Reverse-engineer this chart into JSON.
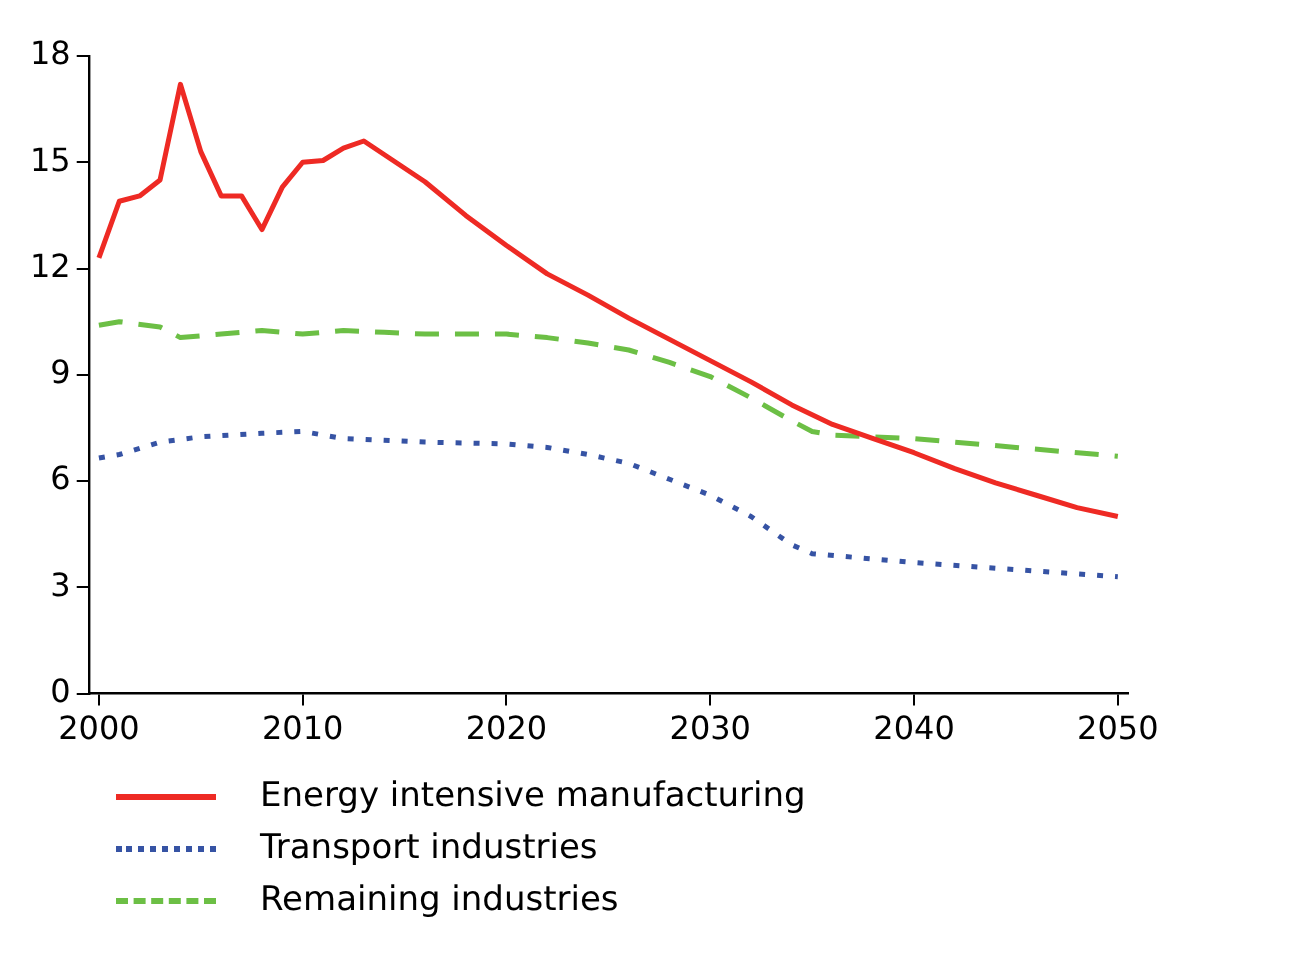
{
  "chart_data": {
    "type": "line",
    "xlim": [
      1999.5,
      2050.5
    ],
    "xticks": [
      2000,
      2010,
      2020,
      2030,
      2040,
      2050
    ],
    "ylim": [
      0,
      18
    ],
    "yticks": [
      0,
      3,
      6,
      9,
      12,
      15,
      18
    ],
    "grid": false,
    "legend": "bottom",
    "marker": "none",
    "series": [
      {
        "name": "Energy intensive manufacturing",
        "color": "#ee2a24",
        "line_style": "solid",
        "x": [
          2000,
          2001,
          2002,
          2003,
          2004,
          2005,
          2006,
          2007,
          2008,
          2009,
          2010,
          2011,
          2012,
          2013,
          2016,
          2018,
          2020,
          2022,
          2024,
          2026,
          2028,
          2030,
          2032,
          2034,
          2036,
          2038,
          2040,
          2042,
          2044,
          2046,
          2048,
          2050
        ],
        "values": [
          12.3,
          13.9,
          14.05,
          14.5,
          17.2,
          15.3,
          14.05,
          14.05,
          13.1,
          14.3,
          15.0,
          15.05,
          15.4,
          15.6,
          14.45,
          13.5,
          12.65,
          11.85,
          11.25,
          10.6,
          10.0,
          9.4,
          8.8,
          8.15,
          7.6,
          7.2,
          6.8,
          6.35,
          5.95,
          5.6,
          5.25,
          5.0
        ]
      },
      {
        "name": "Transport industries",
        "color": "#3653a4",
        "line_style": "dotted",
        "x": [
          2000,
          2001,
          2003,
          2005,
          2008,
          2010,
          2012,
          2016,
          2020,
          2022,
          2024,
          2026,
          2028,
          2030,
          2032,
          2034,
          2035,
          2037,
          2040,
          2045,
          2050
        ],
        "values": [
          6.65,
          6.75,
          7.1,
          7.25,
          7.35,
          7.4,
          7.2,
          7.1,
          7.05,
          6.95,
          6.75,
          6.5,
          6.05,
          5.6,
          5.0,
          4.2,
          3.95,
          3.85,
          3.7,
          3.5,
          3.3
        ]
      },
      {
        "name": "Remaining industries",
        "color": "#6cbf45",
        "line_style": "dashed",
        "x": [
          2000,
          2001,
          2003,
          2004,
          2006,
          2008,
          2010,
          2012,
          2014,
          2016,
          2020,
          2022,
          2024,
          2026,
          2028,
          2030,
          2032,
          2034,
          2035,
          2036,
          2040,
          2045,
          2050
        ],
        "values": [
          10.4,
          10.5,
          10.35,
          10.05,
          10.15,
          10.25,
          10.15,
          10.25,
          10.2,
          10.15,
          10.15,
          10.05,
          9.9,
          9.7,
          9.35,
          8.95,
          8.35,
          7.7,
          7.4,
          7.3,
          7.2,
          6.95,
          6.7
        ]
      }
    ]
  }
}
